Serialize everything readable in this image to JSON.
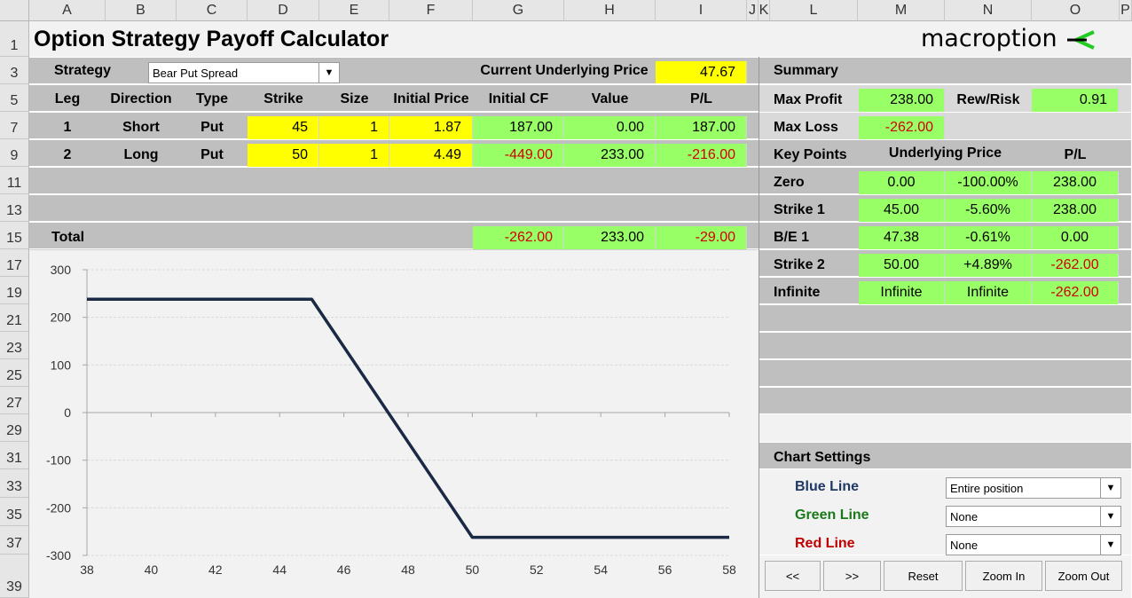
{
  "columns": [
    "A",
    "B",
    "C",
    "D",
    "E",
    "F",
    "G",
    "H",
    "I",
    "J",
    "K",
    "L",
    "M",
    "N",
    "O",
    "P"
  ],
  "rows": [
    "1",
    "3",
    "5",
    "7",
    "9",
    "11",
    "13",
    "15",
    "17",
    "19",
    "21",
    "23",
    "25",
    "27",
    "29",
    "31",
    "33",
    "35",
    "37",
    "39"
  ],
  "title": "Option Strategy Payoff Calculator",
  "logo": {
    "text": "macroption",
    "color": "#22cc22"
  },
  "strategy": {
    "label": "Strategy",
    "value": "Bear Put Spread"
  },
  "underlying": {
    "label": "Current Underlying Price",
    "value": "47.67"
  },
  "legs_table": {
    "headers": [
      "Leg",
      "Direction",
      "Type",
      "Strike",
      "Size",
      "Initial Price",
      "Initial CF",
      "Value",
      "P/L"
    ],
    "rows": [
      {
        "leg": "1",
        "direction": "Short",
        "type": "Put",
        "strike": "45",
        "size": "1",
        "price": "1.87",
        "cf": "187.00",
        "value": "0.00",
        "pl": "187.00"
      },
      {
        "leg": "2",
        "direction": "Long",
        "type": "Put",
        "strike": "50",
        "size": "1",
        "price": "4.49",
        "cf": "-449.00",
        "value": "233.00",
        "pl": "-216.00"
      }
    ],
    "total": {
      "label": "Total",
      "cf": "-262.00",
      "value": "233.00",
      "pl": "-29.00"
    }
  },
  "summary": {
    "title": "Summary",
    "max_profit_label": "Max Profit",
    "max_profit": "238.00",
    "rew_risk_label": "Rew/Risk",
    "rew_risk": "0.91",
    "max_loss_label": "Max Loss",
    "max_loss": "-262.00"
  },
  "key_points": {
    "headers": [
      "Key Points",
      "Underlying Price",
      "P/L"
    ],
    "rows": [
      {
        "name": "Zero",
        "price": "0.00",
        "pct": "-100.00%",
        "pl": "238.00"
      },
      {
        "name": "Strike 1",
        "price": "45.00",
        "pct": "-5.60%",
        "pl": "238.00"
      },
      {
        "name": "B/E 1",
        "price": "47.38",
        "pct": "-0.61%",
        "pl": "0.00"
      },
      {
        "name": "Strike 2",
        "price": "50.00",
        "pct": "+4.89%",
        "pl": "-262.00"
      },
      {
        "name": "Infinite",
        "price": "Infinite",
        "pct": "Infinite",
        "pl": "-262.00"
      }
    ]
  },
  "chart_settings": {
    "title": "Chart Settings",
    "lines": [
      {
        "label": "Blue Line",
        "value": "Entire position",
        "color": "#1f3864"
      },
      {
        "label": "Green Line",
        "value": "None",
        "color": "#1a7a1a"
      },
      {
        "label": "Red Line",
        "value": "None",
        "color": "#c00000"
      }
    ]
  },
  "buttons": [
    "<<",
    ">>",
    "Reset",
    "Zoom In",
    "Zoom Out"
  ],
  "chart_data": {
    "type": "line",
    "x": [
      38,
      45,
      50,
      58
    ],
    "series": [
      {
        "values": [
          238,
          238,
          -262,
          -262
        ],
        "color": "#1a2a44"
      }
    ],
    "xlim": [
      38,
      58
    ],
    "ylim": [
      -300,
      300
    ],
    "x_ticks": [
      38,
      40,
      42,
      44,
      46,
      48,
      50,
      52,
      54,
      56,
      58
    ],
    "y_ticks": [
      300,
      200,
      100,
      0,
      -100,
      -200,
      -300
    ],
    "grid": true
  }
}
